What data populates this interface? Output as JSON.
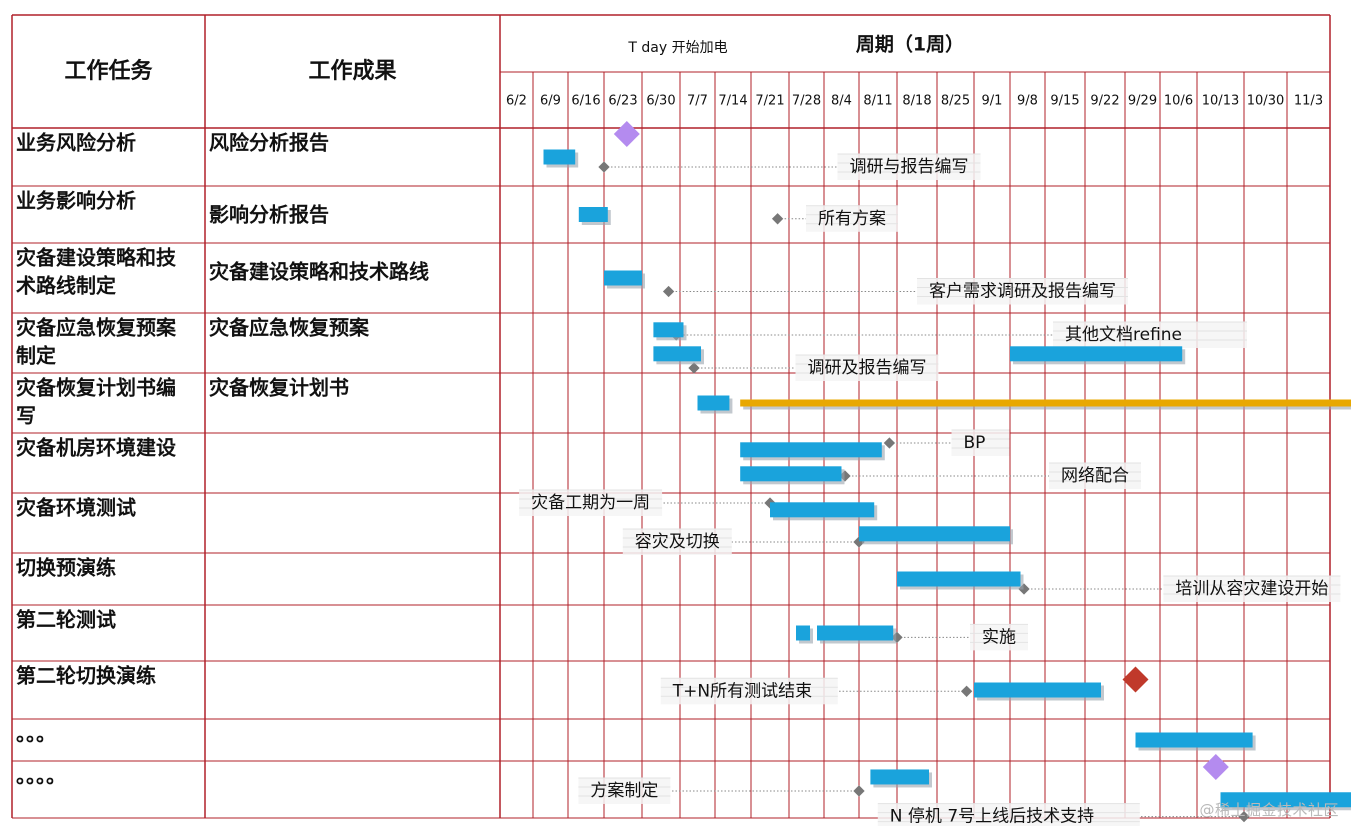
{
  "chart_data": {
    "type": "gantt",
    "title": "周期（1周）",
    "subtitle": "T day 开始加电",
    "col_headers": [
      "工作任务",
      "工作成果"
    ],
    "weeks": [
      "6/2",
      "6/9",
      "6/16",
      "6/23",
      "6/30",
      "7/7",
      "7/14",
      "7/21",
      "7/28",
      "8/4",
      "8/11",
      "8/18",
      "8/25",
      "9/1",
      "9/8",
      "9/15",
      "9/22",
      "9/29",
      "10/6",
      "10/13",
      "10/30",
      "11/3"
    ],
    "rows": [
      {
        "task": "业务风险分析",
        "output": "风险分析报告"
      },
      {
        "task": "业务影响分析",
        "output": "影响分析报告"
      },
      {
        "task": "灾备建设策略和技术路线制定",
        "output": "灾备建设策略和技术路线"
      },
      {
        "task": "灾备应急恢复预案制定",
        "output": "灾备应急恢复预案"
      },
      {
        "task": "灾备恢复计划书编写",
        "output": "灾备恢复计划书"
      },
      {
        "task": "灾备机房环境建设",
        "output": ""
      },
      {
        "task": "灾备环境测试",
        "output": ""
      },
      {
        "task": "切换预演练",
        "output": ""
      },
      {
        "task": "第二轮测试",
        "output": ""
      },
      {
        "task": "第二轮切换演练",
        "output": ""
      },
      {
        "task": "。。。",
        "output": ""
      },
      {
        "task": "。。。。",
        "output": ""
      }
    ],
    "bars": [
      {
        "row": 0,
        "start": 1.3,
        "end": 2.2,
        "color": "#1aa3dc"
      },
      {
        "row": 1,
        "start": 2.3,
        "end": 3.1,
        "color": "#1aa3dc"
      },
      {
        "row": 2,
        "start": 3.0,
        "end": 4.0,
        "color": "#1aa3dc"
      },
      {
        "row": 3,
        "start": 4.3,
        "end": 5.1,
        "sub": 0,
        "color": "#1aa3dc"
      },
      {
        "row": 3,
        "start": 4.3,
        "end": 5.6,
        "sub": 1,
        "color": "#1aa3dc"
      },
      {
        "row": 3,
        "start": 14.0,
        "end": 18.6,
        "sub": 1,
        "color": "#1aa3dc"
      },
      {
        "row": 4,
        "start": 5.5,
        "end": 6.4,
        "color": "#1aa3dc"
      },
      {
        "row": 4,
        "start": 6.7,
        "end": 23.0,
        "color": "#e8a800"
      },
      {
        "row": 5,
        "start": 6.7,
        "end": 10.6,
        "sub": 0,
        "color": "#1aa3dc"
      },
      {
        "row": 5,
        "start": 6.7,
        "end": 9.5,
        "sub": 1,
        "color": "#1aa3dc"
      },
      {
        "row": 6,
        "start": 7.5,
        "end": 10.4,
        "sub": 0,
        "color": "#1aa3dc"
      },
      {
        "row": 6,
        "start": 10.0,
        "end": 14.0,
        "sub": 1,
        "color": "#1aa3dc"
      },
      {
        "row": 7,
        "start": 11.0,
        "end": 14.3,
        "color": "#1aa3dc"
      },
      {
        "row": 8,
        "start": 8.2,
        "end": 8.6,
        "color": "#1aa3dc"
      },
      {
        "row": 8,
        "start": 8.8,
        "end": 10.9,
        "color": "#1aa3dc"
      },
      {
        "row": 9,
        "start": 13.0,
        "end": 16.4,
        "color": "#1aa3dc"
      },
      {
        "row": 10,
        "start": 17.3,
        "end": 20.2,
        "color": "#1aa3dc"
      },
      {
        "row": 11,
        "start": 10.3,
        "end": 11.8,
        "sub": 0,
        "color": "#1aa3dc"
      },
      {
        "row": 11,
        "start": 19.5,
        "end": 22.6,
        "sub": 1,
        "color": "#1aa3dc"
      }
    ],
    "milestones": [
      {
        "row": 0,
        "week": 3.6,
        "shape": "diamond",
        "color": "#b48bef",
        "pos": "top"
      },
      {
        "row": 9,
        "week": 17.3,
        "shape": "diamond",
        "color": "#c0392b",
        "pos": "mid"
      },
      {
        "row": 11,
        "week": 19.4,
        "shape": "diamond",
        "color": "#b48bef",
        "pos": "top"
      }
    ],
    "annotations": [
      {
        "text": "调研与报告编写",
        "row": 0,
        "dot": 3.0,
        "label_week": 9.5,
        "dir": "right",
        "sub": 0.5
      },
      {
        "text": "所有方案",
        "row": 1,
        "dot": 7.7,
        "label_week": 8.6,
        "dir": "right",
        "sub": 0.4
      },
      {
        "text": "客户需求调研及报告编写",
        "row": 2,
        "dot": 4.7,
        "label_week": 11.6,
        "dir": "right",
        "sub": 0.55
      },
      {
        "text": "其他文档refine",
        "row": 3,
        "dot": 4.9,
        "label_week": 15.3,
        "dir": "right",
        "sub": 0.2
      },
      {
        "text": "调研及报告编写",
        "row": 3,
        "dot": 5.4,
        "label_week": 8.3,
        "dir": "right",
        "sub": 0.75
      },
      {
        "text": "BP",
        "row": 5,
        "dot": 10.8,
        "label_week": 12.5,
        "dir": "right",
        "sub": 0.0
      },
      {
        "text": "网络配合",
        "row": 5,
        "dot": 9.6,
        "label_week": 15.2,
        "dir": "right",
        "sub": 0.55
      },
      {
        "text": "灾备工期为一周",
        "row": 6,
        "dot": 7.5,
        "label_week": 0.7,
        "dir": "left",
        "sub": 0.0
      },
      {
        "text": "容灾及切换",
        "row": 6,
        "dot": 10.0,
        "label_week": 3.6,
        "dir": "left",
        "sub": 0.65
      },
      {
        "text": "培训从容灾建设开始",
        "row": 7,
        "dot": 14.4,
        "label_week": 18.2,
        "dir": "right",
        "sub": 0.5
      },
      {
        "text": "实施",
        "row": 8,
        "dot": 11.0,
        "label_week": 13.0,
        "dir": "right",
        "sub": 0.4
      },
      {
        "text": "T+N所有测试结束",
        "row": 9,
        "dot": 12.8,
        "label_week": 4.6,
        "dir": "left",
        "sub": 0.35
      },
      {
        "text": "方案制定",
        "row": 11,
        "dot": 10.0,
        "label_week": 2.4,
        "dir": "left",
        "sub": 0.35
      },
      {
        "text": "N 停机 7号上线后技术支持",
        "row": 11,
        "dot": 20.0,
        "label_week": 10.6,
        "dir": "left",
        "sub": 0.8
      }
    ]
  },
  "watermark": "@稀土掘金技术社区"
}
